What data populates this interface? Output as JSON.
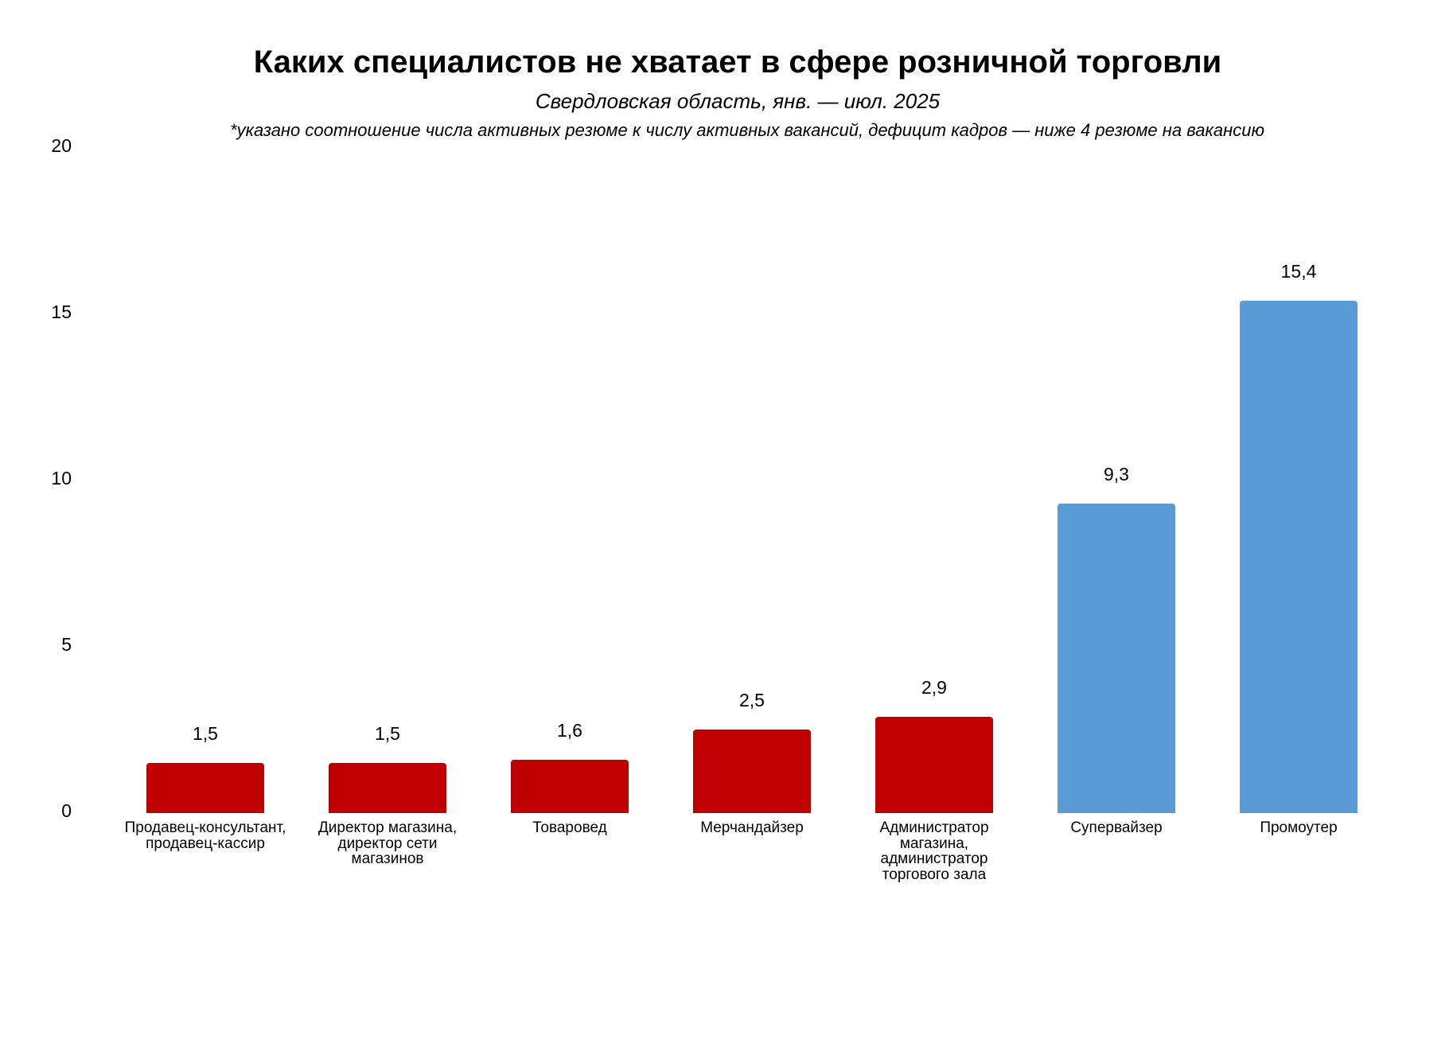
{
  "header": {
    "title": "Каких специалистов не хватает в сфере розничной торговли",
    "subtitle": "Свердловская область, янв. — июл. 2025",
    "note": "*указано соотношение числа активных резюме к числу активных вакансий, дефицит кадров — ниже 4 резюме на вакансию"
  },
  "axis": {
    "ticks": [
      "20",
      "15",
      "10",
      "5",
      "0"
    ]
  },
  "bars": [
    {
      "label": "Продавец-консультант, продавец-кассир",
      "lines": [
        "Продавец-консультант,",
        "продавец-кассир"
      ],
      "value": 1.5,
      "value_label": "1,5",
      "color": "#C00000"
    },
    {
      "label": "Директор магазина, директор сети магазинов",
      "lines": [
        "Директор магазина,",
        "директор сети",
        "магазинов"
      ],
      "value": 1.5,
      "value_label": "1,5",
      "color": "#C00000"
    },
    {
      "label": "Товаровед",
      "lines": [
        "Товаровед"
      ],
      "value": 1.6,
      "value_label": "1,6",
      "color": "#C00000"
    },
    {
      "label": "Мерчандайзер",
      "lines": [
        "Мерчандайзер"
      ],
      "value": 2.5,
      "value_label": "2,5",
      "color": "#C00000"
    },
    {
      "label": "Администратор магазина, администратор торгового зала",
      "lines": [
        "Администратор",
        "магазина,",
        "администратор",
        "торгового зала"
      ],
      "value": 2.9,
      "value_label": "2,9",
      "color": "#C00000"
    },
    {
      "label": "Супервайзер",
      "lines": [
        "Супервайзер"
      ],
      "value": 9.3,
      "value_label": "9,3",
      "color": "#5B9BD5"
    },
    {
      "label": "Промоутер",
      "lines": [
        "Промоутер"
      ],
      "value": 15.4,
      "value_label": "15,4",
      "color": "#5B9BD5"
    }
  ],
  "colors": {
    "deficit": "#C00000",
    "no_deficit": "#5B9BD5"
  },
  "chart_data": {
    "type": "bar",
    "title": "Каких специалистов не хватает в сфере розничной торговли",
    "subtitle": "Свердловская область, янв. — июл. 2025",
    "annotation": "*указано соотношение числа активных резюме к числу активных вакансий, дефицит кадров — ниже 4 резюме на вакансию",
    "categories": [
      "Продавец-консультант, продавец-кассир",
      "Директор магазина, директор сети магазинов",
      "Товаровед",
      "Мерчандайзер",
      "Администратор магазина, администратор торгового зала",
      "Супервайзер",
      "Промоутер"
    ],
    "values": [
      1.5,
      1.5,
      1.6,
      2.5,
      2.9,
      9.3,
      15.4
    ],
    "bar_colors": [
      "#C00000",
      "#C00000",
      "#C00000",
      "#C00000",
      "#C00000",
      "#5B9BD5",
      "#5B9BD5"
    ],
    "xlabel": "",
    "ylabel": "",
    "ylim": [
      0,
      20
    ],
    "yticks": [
      0,
      5,
      10,
      15,
      20
    ],
    "grid": false,
    "legend": "none",
    "data_labels": true
  }
}
